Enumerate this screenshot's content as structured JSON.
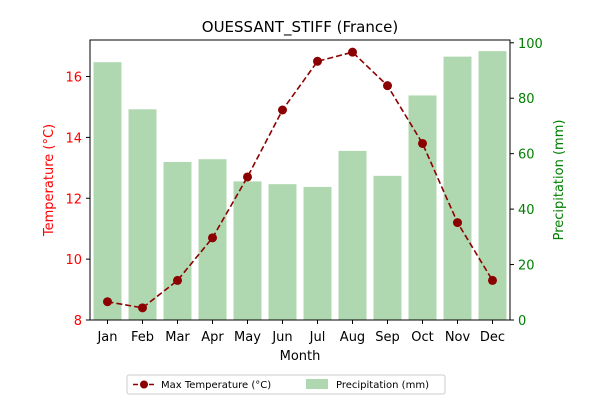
{
  "chart_data": {
    "type": "bar+line",
    "title": "OUESSANT_STIFF (France)",
    "xlabel": "Month",
    "categories": [
      "Jan",
      "Feb",
      "Mar",
      "Apr",
      "May",
      "Jun",
      "Jul",
      "Aug",
      "Sep",
      "Oct",
      "Nov",
      "Dec"
    ],
    "series": [
      {
        "name": "Max Temperature (°C)",
        "type": "line",
        "axis": "left",
        "color": "#8b0000",
        "style": "dashed, circle markers",
        "values": [
          8.6,
          8.4,
          9.3,
          10.7,
          12.7,
          14.9,
          16.5,
          16.8,
          15.7,
          13.8,
          11.2,
          9.3
        ]
      },
      {
        "name": "Precipitation (mm)",
        "type": "bar",
        "axis": "right",
        "color": "#b0d8b0",
        "values": [
          93,
          76,
          57,
          58,
          50,
          49,
          48,
          61,
          52,
          81,
          95,
          97
        ]
      }
    ],
    "left_axis": {
      "label": "Temperature (°C)",
      "color": "#ff0000",
      "range": [
        8,
        17.2
      ],
      "ticks": [
        8,
        10,
        12,
        14,
        16
      ]
    },
    "right_axis": {
      "label": "Precipitation (mm)",
      "color": "#008000",
      "range": [
        0,
        101
      ],
      "ticks": [
        0,
        20,
        40,
        60,
        80,
        100
      ]
    },
    "grid": false,
    "legend_position": "bottom-center"
  }
}
